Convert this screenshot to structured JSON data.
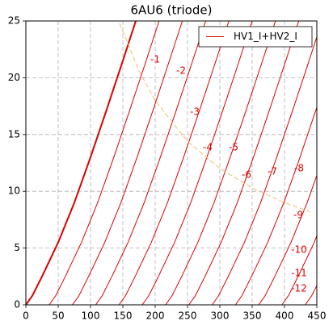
{
  "chart_data": {
    "type": "line",
    "title": "6AU6 (triode)",
    "xlim": [
      0,
      450
    ],
    "ylim": [
      0,
      25
    ],
    "xticks": [
      0,
      50,
      100,
      150,
      200,
      250,
      300,
      350,
      400,
      450
    ],
    "yticks": [
      0,
      5,
      10,
      15,
      20,
      25
    ],
    "grid": true,
    "legend": "upper right",
    "legend_label": "HV1_I+HV2_I",
    "series": [
      {
        "color": "#dd0000",
        "width": 2,
        "x": [
          0,
          10,
          25,
          50,
          75,
          100,
          125,
          150,
          170
        ],
        "values": [
          0,
          0.8,
          2.5,
          5.5,
          9,
          13,
          17.2,
          21.5,
          25
        ]
      },
      {
        "label": "-1",
        "color": "#dd0000",
        "width": 1,
        "x": [
          36,
          46,
          61,
          86,
          111,
          136,
          161,
          186,
          206
        ],
        "values": [
          0,
          0.8,
          2.5,
          5.5,
          9,
          13,
          17.2,
          21.5,
          25
        ]
      },
      {
        "label": "-2",
        "color": "#dd0000",
        "width": 1,
        "x": [
          72,
          82,
          97,
          122,
          147,
          172,
          197,
          222,
          242
        ],
        "values": [
          0,
          0.8,
          2.5,
          5.5,
          9,
          13,
          17.2,
          21.5,
          25
        ]
      },
      {
        "label": "-3",
        "color": "#dd0000",
        "width": 1,
        "x": [
          108,
          118,
          133,
          158,
          183,
          208,
          233,
          258,
          278
        ],
        "values": [
          0,
          0.8,
          2.5,
          5.5,
          9,
          13,
          17.2,
          21.5,
          25
        ]
      },
      {
        "label": "-4",
        "color": "#dd0000",
        "width": 1,
        "x": [
          144,
          154,
          169,
          194,
          219,
          244,
          269,
          294,
          314
        ],
        "values": [
          0,
          0.8,
          2.5,
          5.5,
          9,
          13,
          17.2,
          21.5,
          25
        ]
      },
      {
        "label": "-5",
        "color": "#dd0000",
        "width": 1,
        "x": [
          180,
          190,
          205,
          230,
          255,
          280,
          305,
          330,
          350
        ],
        "values": [
          0,
          0.8,
          2.5,
          5.5,
          9,
          13,
          17.2,
          21.5,
          25
        ]
      },
      {
        "label": "-6",
        "color": "#dd0000",
        "width": 1,
        "x": [
          216,
          226,
          241,
          266,
          291,
          316,
          341,
          366,
          386
        ],
        "values": [
          0,
          0.8,
          2.5,
          5.5,
          9,
          13,
          17.2,
          21.5,
          25
        ]
      },
      {
        "label": "-7",
        "color": "#dd0000",
        "width": 1,
        "x": [
          252,
          262,
          277,
          302,
          327,
          352,
          377,
          402,
          422
        ],
        "values": [
          0,
          0.8,
          2.5,
          5.5,
          9,
          13,
          17.2,
          21.5,
          25
        ]
      },
      {
        "label": "-8",
        "color": "#dd0000",
        "width": 1,
        "x": [
          288,
          298,
          313,
          338,
          363,
          388,
          413,
          438,
          450
        ],
        "values": [
          0,
          0.8,
          2.5,
          5.5,
          9,
          13,
          17.2,
          21.5,
          23.6
        ]
      },
      {
        "label": "-9",
        "color": "#dd0000",
        "width": 1,
        "x": [
          324,
          334,
          349,
          374,
          399,
          424,
          450
        ],
        "values": [
          0,
          0.8,
          2.5,
          5.5,
          9,
          13,
          17.4
        ]
      },
      {
        "label": "-10",
        "color": "#dd0000",
        "width": 1,
        "x": [
          360,
          370,
          385,
          410,
          435,
          450
        ],
        "values": [
          0,
          0.8,
          2.5,
          5.5,
          9,
          11.4
        ]
      },
      {
        "label": "-11",
        "color": "#dd0000",
        "width": 1,
        "x": [
          396,
          406,
          421,
          446,
          450
        ],
        "values": [
          0,
          0.8,
          2.5,
          5.5,
          6.1
        ]
      },
      {
        "label": "-12",
        "color": "#dd0000",
        "width": 1,
        "x": [
          432,
          442,
          450
        ],
        "values": [
          0,
          0.8,
          1.7
        ]
      },
      {
        "color": "#f0c070",
        "width": 1,
        "dashed": true,
        "x": [
          145,
          175,
          200,
          250,
          300,
          350,
          400,
          440
        ],
        "values": [
          24.8,
          20.6,
          18,
          14.4,
          12,
          10.3,
          9,
          8.2
        ]
      }
    ]
  }
}
